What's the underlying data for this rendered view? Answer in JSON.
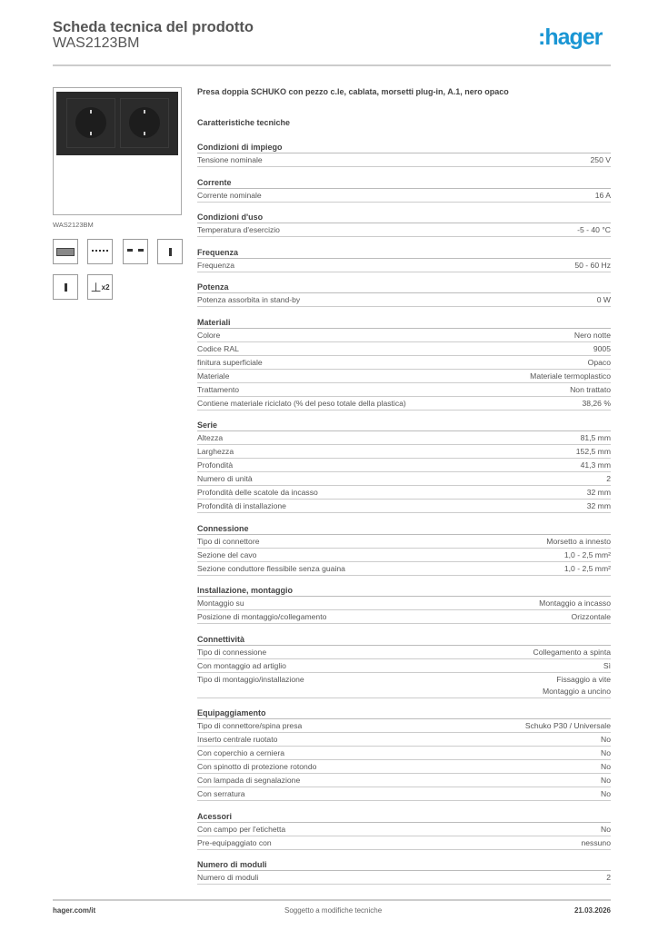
{
  "header": {
    "title": "Scheda tecnica del prodotto",
    "product_code": "WAS2123BM",
    "logo": ":hager",
    "logo_color": "#1a96d4"
  },
  "image": {
    "caption": "WAS2123BM",
    "thumbnails": [
      "front-view-icon",
      "side-view-icon",
      "top-view-icon",
      "profile-right-icon",
      "profile-left-icon",
      "mounting-dimension-x2-icon"
    ],
    "thumb_x2": "x2"
  },
  "description": "Presa doppia SCHUKO con pezzo c.le, cablata, morsetti plug-in, A.1, nero opaco",
  "specs_title": "Caratteristiche tecniche",
  "sections": [
    {
      "title": "Condizioni di impiego",
      "rows": [
        [
          "Tensione nominale",
          "250 V"
        ]
      ]
    },
    {
      "title": "Corrente",
      "rows": [
        [
          "Corrente nominale",
          "16 A"
        ]
      ]
    },
    {
      "title": "Condizioni d'uso",
      "rows": [
        [
          "Temperatura d'esercizio",
          "-5 - 40 °C"
        ]
      ]
    },
    {
      "title": "Frequenza",
      "rows": [
        [
          "Frequenza",
          "50 - 60 Hz"
        ]
      ]
    },
    {
      "title": "Potenza",
      "rows": [
        [
          "Potenza assorbita in stand-by",
          "0 W"
        ]
      ]
    },
    {
      "title": "Materiali",
      "rows": [
        [
          "Colore",
          "Nero notte"
        ],
        [
          "Codice RAL",
          "9005"
        ],
        [
          "finitura superficiale",
          "Opaco"
        ],
        [
          "Materiale",
          "Materiale termoplastico"
        ],
        [
          "Trattamento",
          "Non trattato"
        ],
        [
          "Contiene materiale riciclato (% del peso totale della plastica)",
          "38,26 %"
        ]
      ]
    },
    {
      "title": "Serie",
      "rows": [
        [
          "Altezza",
          "81,5 mm"
        ],
        [
          "Larghezza",
          "152,5 mm"
        ],
        [
          "Profondità",
          "41,3 mm"
        ],
        [
          "Numero di unità",
          "2"
        ],
        [
          "Profondità delle scatole da incasso",
          "32 mm"
        ],
        [
          "Profondità di installazione",
          "32 mm"
        ]
      ]
    },
    {
      "title": "Connessione",
      "rows": [
        [
          "Tipo di connettore",
          "Morsetto a innesto"
        ],
        [
          "Sezione del cavo",
          "1,0 - 2,5 mm²"
        ],
        [
          "Sezione conduttore flessibile senza guaina",
          "1,0 - 2,5 mm²"
        ]
      ]
    },
    {
      "title": "Installazione, montaggio",
      "rows": [
        [
          "Montaggio su",
          "Montaggio a incasso"
        ],
        [
          "Posizione di montaggio/collegamento",
          "Orizzontale"
        ]
      ]
    },
    {
      "title": "Connettività",
      "rows": [
        [
          "Tipo di connessione",
          "Collegamento a spinta"
        ],
        [
          "Con montaggio ad artiglio",
          "Sì"
        ],
        [
          "Tipo di montaggio/installazione",
          "Fissaggio a vite\nMontaggio a uncino"
        ]
      ]
    },
    {
      "title": "Equipaggiamento",
      "rows": [
        [
          "Tipo di connettore/spina presa",
          "Schuko P30 / Universale"
        ],
        [
          "Inserto centrale ruotato",
          "No"
        ],
        [
          "Con coperchio a cerniera",
          "No"
        ],
        [
          "Con spinotto di protezione rotondo",
          "No"
        ],
        [
          "Con lampada di segnalazione",
          "No"
        ],
        [
          "Con serratura",
          "No"
        ]
      ]
    },
    {
      "title": "Acessori",
      "rows": [
        [
          "Con campo per l'etichetta",
          "No"
        ],
        [
          "Pre-equipaggiato con",
          "nessuno"
        ]
      ]
    },
    {
      "title": "Numero di moduli",
      "rows": [
        [
          "Numero di moduli",
          "2"
        ]
      ]
    }
  ],
  "footer": {
    "website": "hager.com/it",
    "note": "Soggetto a modifiche tecniche",
    "date": "21.03.2026"
  }
}
